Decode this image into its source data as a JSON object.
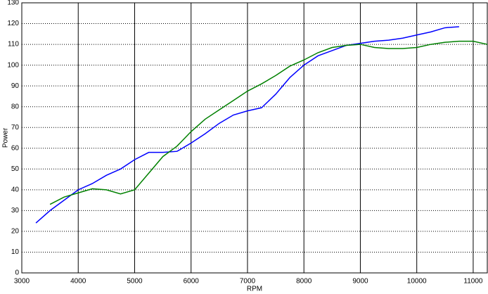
{
  "chart_data": {
    "type": "line",
    "x_label": "RPM",
    "y_label": "Power",
    "x": [
      3250,
      3500,
      3750,
      4000,
      4250,
      4500,
      4750,
      5000,
      5250,
      5500,
      5750,
      6000,
      6250,
      6500,
      6750,
      7000,
      7250,
      7500,
      7750,
      8000,
      8250,
      8500,
      8750,
      9000,
      9250,
      9500,
      9750,
      10000,
      10250,
      10500,
      10750,
      11000,
      11250
    ],
    "series": [
      {
        "color": "#0000ff",
        "values": [
          24,
          30,
          35,
          40,
          43,
          47,
          50,
          54.5,
          58,
          58,
          58.5,
          62.5,
          67,
          72,
          76,
          78,
          79.5,
          86,
          94,
          100,
          104.5,
          107,
          109.5,
          110.5,
          111.5,
          112,
          113,
          114.5,
          116,
          118,
          118.5,
          null,
          null
        ]
      },
      {
        "color": "#008000",
        "values": [
          null,
          33,
          36.5,
          38.5,
          40.5,
          40,
          38,
          40,
          48,
          56,
          61,
          68,
          74,
          78.5,
          83,
          87.5,
          91,
          95,
          99.5,
          102.5,
          106,
          108.5,
          109.5,
          110,
          108.5,
          108,
          108,
          108.5,
          110,
          111,
          111.5,
          111.5,
          110
        ]
      }
    ],
    "xlim": [
      3000,
      11250
    ],
    "xticks": [
      3000,
      4000,
      5000,
      6000,
      7000,
      8000,
      9000,
      10000,
      11000
    ],
    "ylim": [
      0,
      130
    ],
    "yticks": [
      0,
      10,
      20,
      30,
      40,
      50,
      60,
      70,
      80,
      90,
      100,
      110,
      120,
      130
    ],
    "grid": true
  }
}
